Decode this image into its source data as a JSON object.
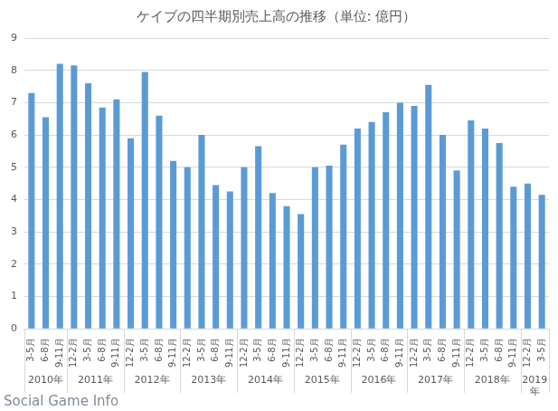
{
  "chart_data": {
    "type": "bar",
    "title": "ケイブの四半期別売上高の推移（単位: 億円）",
    "categories": [
      "3-5月",
      "6-8月",
      "9-11月",
      "12-2月",
      "3-5月",
      "6-8月",
      "9-11月",
      "12-2月",
      "3-5月",
      "6-8月",
      "9-11月",
      "12-2月",
      "3-5月",
      "6-8月",
      "9-11月",
      "12-2月",
      "3-5月",
      "6-8月",
      "9-11月",
      "12-2月",
      "3-5月",
      "6-8月",
      "9-11月",
      "12-2月",
      "3-5月",
      "6-8月",
      "9-11月",
      "12-2月",
      "3-5月",
      "6-8月",
      "9-11月",
      "12-2月",
      "3-5月",
      "6-8月",
      "9-11月",
      "12-2月",
      "3-5月"
    ],
    "groups": [
      {
        "label": "2010年",
        "count": 3
      },
      {
        "label": "2011年",
        "count": 4
      },
      {
        "label": "2012年",
        "count": 4
      },
      {
        "label": "2013年",
        "count": 4
      },
      {
        "label": "2014年",
        "count": 4
      },
      {
        "label": "2015年",
        "count": 4
      },
      {
        "label": "2016年",
        "count": 4
      },
      {
        "label": "2017年",
        "count": 4
      },
      {
        "label": "2018年",
        "count": 4
      },
      {
        "label": "2019年",
        "count": 2
      }
    ],
    "values": [
      7.3,
      6.55,
      8.2,
      8.15,
      7.6,
      6.85,
      7.1,
      5.9,
      7.95,
      6.6,
      5.2,
      5.0,
      6.0,
      4.45,
      4.25,
      5.0,
      5.65,
      4.2,
      3.8,
      3.55,
      5.0,
      5.05,
      5.7,
      6.2,
      6.4,
      6.7,
      7.0,
      6.9,
      7.55,
      6.0,
      4.9,
      6.45,
      6.2,
      5.75,
      4.4,
      4.5,
      4.15
    ],
    "color": "#5b9bd5",
    "ylim": [
      0,
      9
    ],
    "yticks": [
      0,
      1,
      2,
      3,
      4,
      5,
      6,
      7,
      8,
      9
    ],
    "grid": true,
    "annotations": [
      "Social Game Info"
    ]
  }
}
